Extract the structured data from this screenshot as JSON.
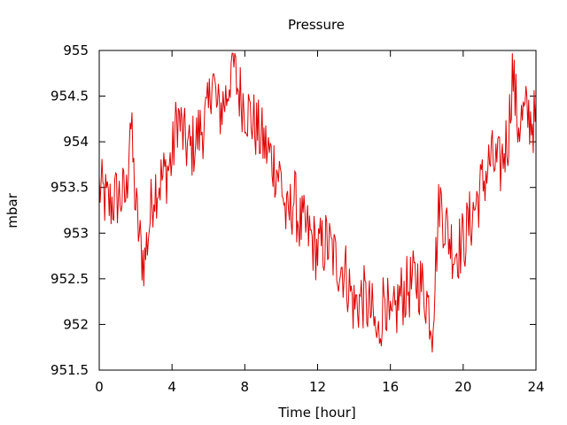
{
  "chart_data": {
    "type": "line",
    "title": "Pressure",
    "xlabel": "Time [hour]",
    "ylabel": "mbar",
    "xlim": [
      0,
      24
    ],
    "ylim": [
      951.5,
      955
    ],
    "xticks": [
      0,
      4,
      8,
      12,
      16,
      20,
      24
    ],
    "xtick_labels": [
      "0",
      "4",
      "8",
      "12",
      "16",
      "20",
      "24"
    ],
    "yticks": [
      951.5,
      952,
      952.5,
      953,
      953.5,
      954,
      954.5,
      955
    ],
    "ytick_labels": [
      "951.5",
      "952",
      "952.5",
      "953",
      "953.5",
      "954",
      "954.5",
      "955"
    ],
    "grid": false,
    "line_color": "#e00000",
    "series": [
      {
        "x": [
          0,
          0.5,
          1,
          1.5,
          1.7,
          2,
          2.3,
          2.5,
          3,
          3.5,
          4,
          4.3,
          4.7,
          5,
          5.5,
          6,
          6.2,
          6.5,
          7,
          7.3,
          7.6,
          8,
          8.5,
          9,
          9.5,
          10,
          10.3,
          10.7,
          11,
          11.5,
          12,
          12.5,
          13,
          13.5,
          14,
          14.5,
          15,
          15.3,
          15.7,
          16,
          16.5,
          17,
          17.5,
          18,
          18.3,
          18.7,
          19,
          19.5,
          20,
          20.5,
          21,
          21.5,
          22,
          22.5,
          22.7,
          23,
          23.5,
          24
        ],
        "y": [
          953.5,
          953.3,
          953.4,
          953.4,
          954.3,
          953.3,
          952.8,
          952.7,
          953.5,
          953.6,
          953.8,
          954.3,
          954,
          953.9,
          954.1,
          954.3,
          954.8,
          954.3,
          954.5,
          954.9,
          954.6,
          954.4,
          954.2,
          954,
          953.8,
          953.6,
          953.1,
          953.4,
          953.1,
          953,
          952.8,
          952.9,
          952.7,
          952.6,
          952.2,
          952.3,
          952.1,
          951.8,
          952.4,
          951.9,
          952.3,
          952.4,
          952.5,
          952.3,
          952,
          953.4,
          953.1,
          952.8,
          952.9,
          953.2,
          953.5,
          953.8,
          953.7,
          954.1,
          954.8,
          954.2,
          954.3,
          954.2
        ]
      }
    ]
  }
}
